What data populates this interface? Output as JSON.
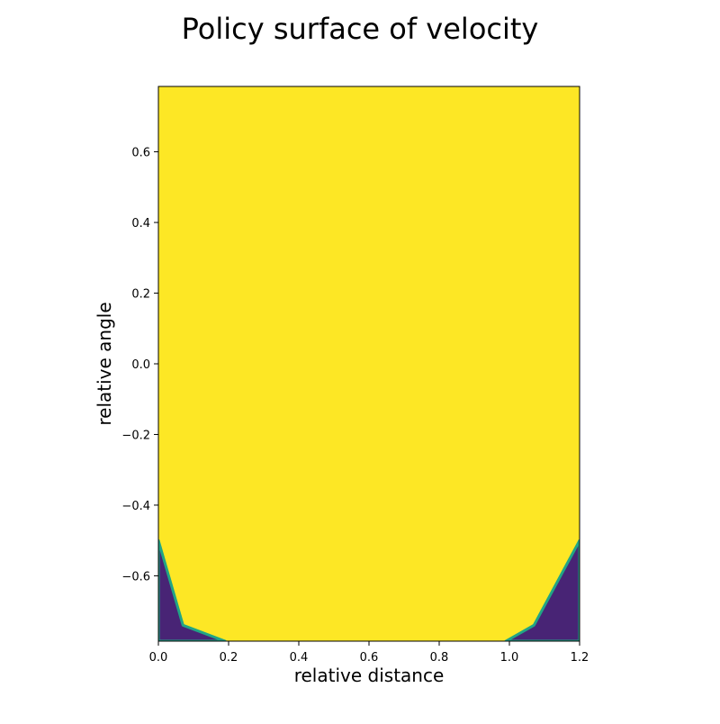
{
  "chart_data": {
    "type": "heatmap",
    "title": "Policy surface of velocity",
    "xlabel": "relative distance",
    "ylabel": "relative angle",
    "xlim": [
      0.0,
      1.2
    ],
    "ylim": [
      -0.785,
      0.785
    ],
    "x_ticks": [
      {
        "value": 0.0,
        "label": "0.0"
      },
      {
        "value": 0.2,
        "label": "0.2"
      },
      {
        "value": 0.4,
        "label": "0.4"
      },
      {
        "value": 0.6,
        "label": "0.6"
      },
      {
        "value": 0.8,
        "label": "0.8"
      },
      {
        "value": 1.0,
        "label": "1.0"
      },
      {
        "value": 1.2,
        "label": "1.2"
      }
    ],
    "y_ticks": [
      {
        "value": -0.6,
        "label": "−0.6"
      },
      {
        "value": -0.4,
        "label": "−0.4"
      },
      {
        "value": -0.2,
        "label": "−0.2"
      },
      {
        "value": 0.0,
        "label": "0.0"
      },
      {
        "value": 0.2,
        "label": "0.2"
      },
      {
        "value": 0.4,
        "label": "0.4"
      },
      {
        "value": 0.6,
        "label": "0.6"
      }
    ],
    "colormap": "viridis",
    "grid": false,
    "high_color": "#fde725",
    "low_color": "#482475",
    "transition_color": "#21a585",
    "low_regions": [
      {
        "name": "low-region-left",
        "boundary": [
          [
            0.0,
            -0.785
          ],
          [
            0.0,
            -0.5
          ],
          [
            0.07,
            -0.74
          ],
          [
            0.19,
            -0.785
          ]
        ]
      },
      {
        "name": "low-region-right",
        "boundary": [
          [
            1.2,
            -0.785
          ],
          [
            1.2,
            -0.5
          ],
          [
            1.07,
            -0.74
          ],
          [
            0.99,
            -0.785
          ]
        ]
      }
    ]
  }
}
